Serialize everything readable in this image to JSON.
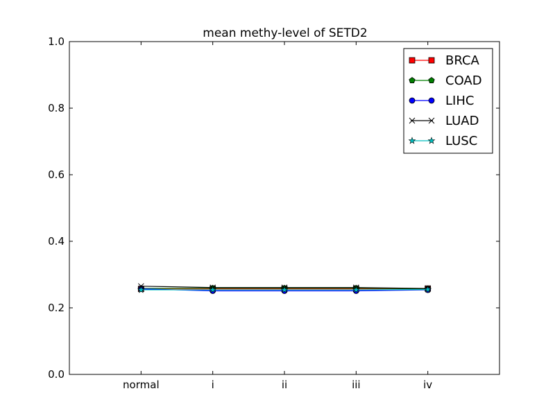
{
  "chart_data": {
    "type": "line",
    "title": "mean methy-level of SETD2",
    "xlabel": "",
    "ylabel": "",
    "categories": [
      "normal",
      "i",
      "ii",
      "iii",
      "iv"
    ],
    "ylim": [
      0.0,
      1.0
    ],
    "yticks": [
      0.0,
      0.2,
      0.4,
      0.6,
      0.8,
      1.0
    ],
    "yticklabels": [
      "0.0",
      "0.2",
      "0.4",
      "0.6",
      "0.8",
      "1.0"
    ],
    "grid": false,
    "legend_position": "top-right",
    "series": [
      {
        "name": "BRCA",
        "color": "#ff0000",
        "marker": "square",
        "values": [
          0.257,
          0.257,
          0.257,
          0.257,
          0.258
        ]
      },
      {
        "name": "COAD",
        "color": "#008000",
        "marker": "pentagon",
        "values": [
          0.258,
          0.259,
          0.259,
          0.259,
          0.257
        ]
      },
      {
        "name": "LIHC",
        "color": "#0000ff",
        "marker": "circle",
        "values": [
          0.257,
          0.251,
          0.251,
          0.251,
          0.254
        ]
      },
      {
        "name": "LUAD",
        "color": "#000000",
        "marker": "x",
        "values": [
          0.265,
          0.261,
          0.261,
          0.261,
          0.258
        ]
      },
      {
        "name": "LUSC",
        "color": "#00bfbf",
        "marker": "star",
        "values": [
          0.254,
          0.254,
          0.254,
          0.254,
          0.255
        ]
      }
    ]
  }
}
